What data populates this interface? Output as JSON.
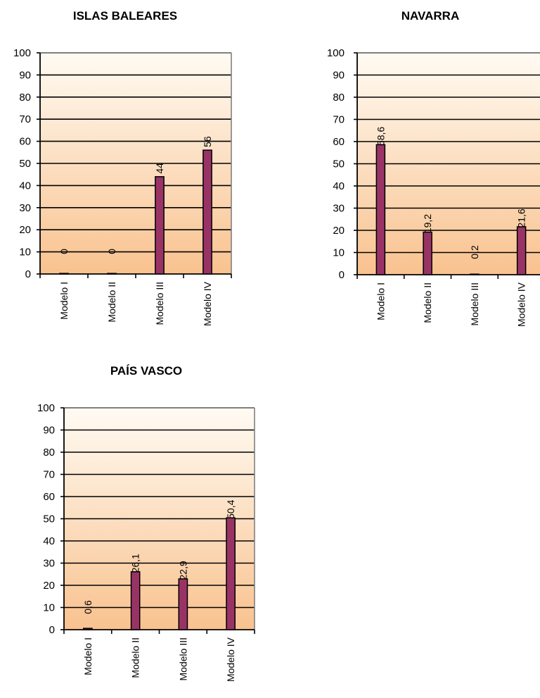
{
  "chart_data": [
    {
      "type": "bar",
      "title": "ISLAS BALEARES",
      "categories": [
        "Modelo I",
        "Modelo II",
        "Modelo III",
        "Modelo IV"
      ],
      "values": [
        0,
        0,
        44,
        56
      ],
      "labels": [
        "0",
        "0",
        "44",
        "56"
      ],
      "yticks": [
        "0",
        "10",
        "20",
        "30",
        "40",
        "50",
        "60",
        "70",
        "80",
        "90",
        "100"
      ],
      "ylim": [
        0,
        100
      ],
      "grid": true,
      "colors": {
        "bar": "#993366",
        "plot_top": "#fffbf3",
        "plot_bottom": "#f9c28f"
      }
    },
    {
      "type": "bar",
      "title": "NAVARRA",
      "categories": [
        "Modelo I",
        "Modelo II",
        "Modelo III",
        "Modelo IV"
      ],
      "values": [
        58.6,
        19.2,
        0.2,
        21.6
      ],
      "labels": [
        "58,6",
        "19,2",
        "0,2",
        "21,6"
      ],
      "yticks": [
        "0",
        "10",
        "20",
        "30",
        "40",
        "50",
        "60",
        "70",
        "80",
        "90",
        "100"
      ],
      "ylim": [
        0,
        100
      ],
      "grid": true,
      "colors": {
        "bar": "#993366",
        "plot_top": "#fffbf3",
        "plot_bottom": "#f9c28f"
      }
    },
    {
      "type": "bar",
      "title": "PAÍS VASCO",
      "categories": [
        "Modelo I",
        "Modelo II",
        "Modelo III",
        "Modelo IV"
      ],
      "values": [
        0.6,
        26.1,
        22.9,
        50.4
      ],
      "labels": [
        "0,6",
        "26,1",
        "22,9",
        "50,4"
      ],
      "yticks": [
        "0",
        "10",
        "20",
        "30",
        "40",
        "50",
        "60",
        "70",
        "80",
        "90",
        "100"
      ],
      "ylim": [
        0,
        100
      ],
      "grid": true,
      "colors": {
        "bar": "#993366",
        "plot_top": "#fffbf3",
        "plot_bottom": "#f9c28f"
      }
    }
  ]
}
